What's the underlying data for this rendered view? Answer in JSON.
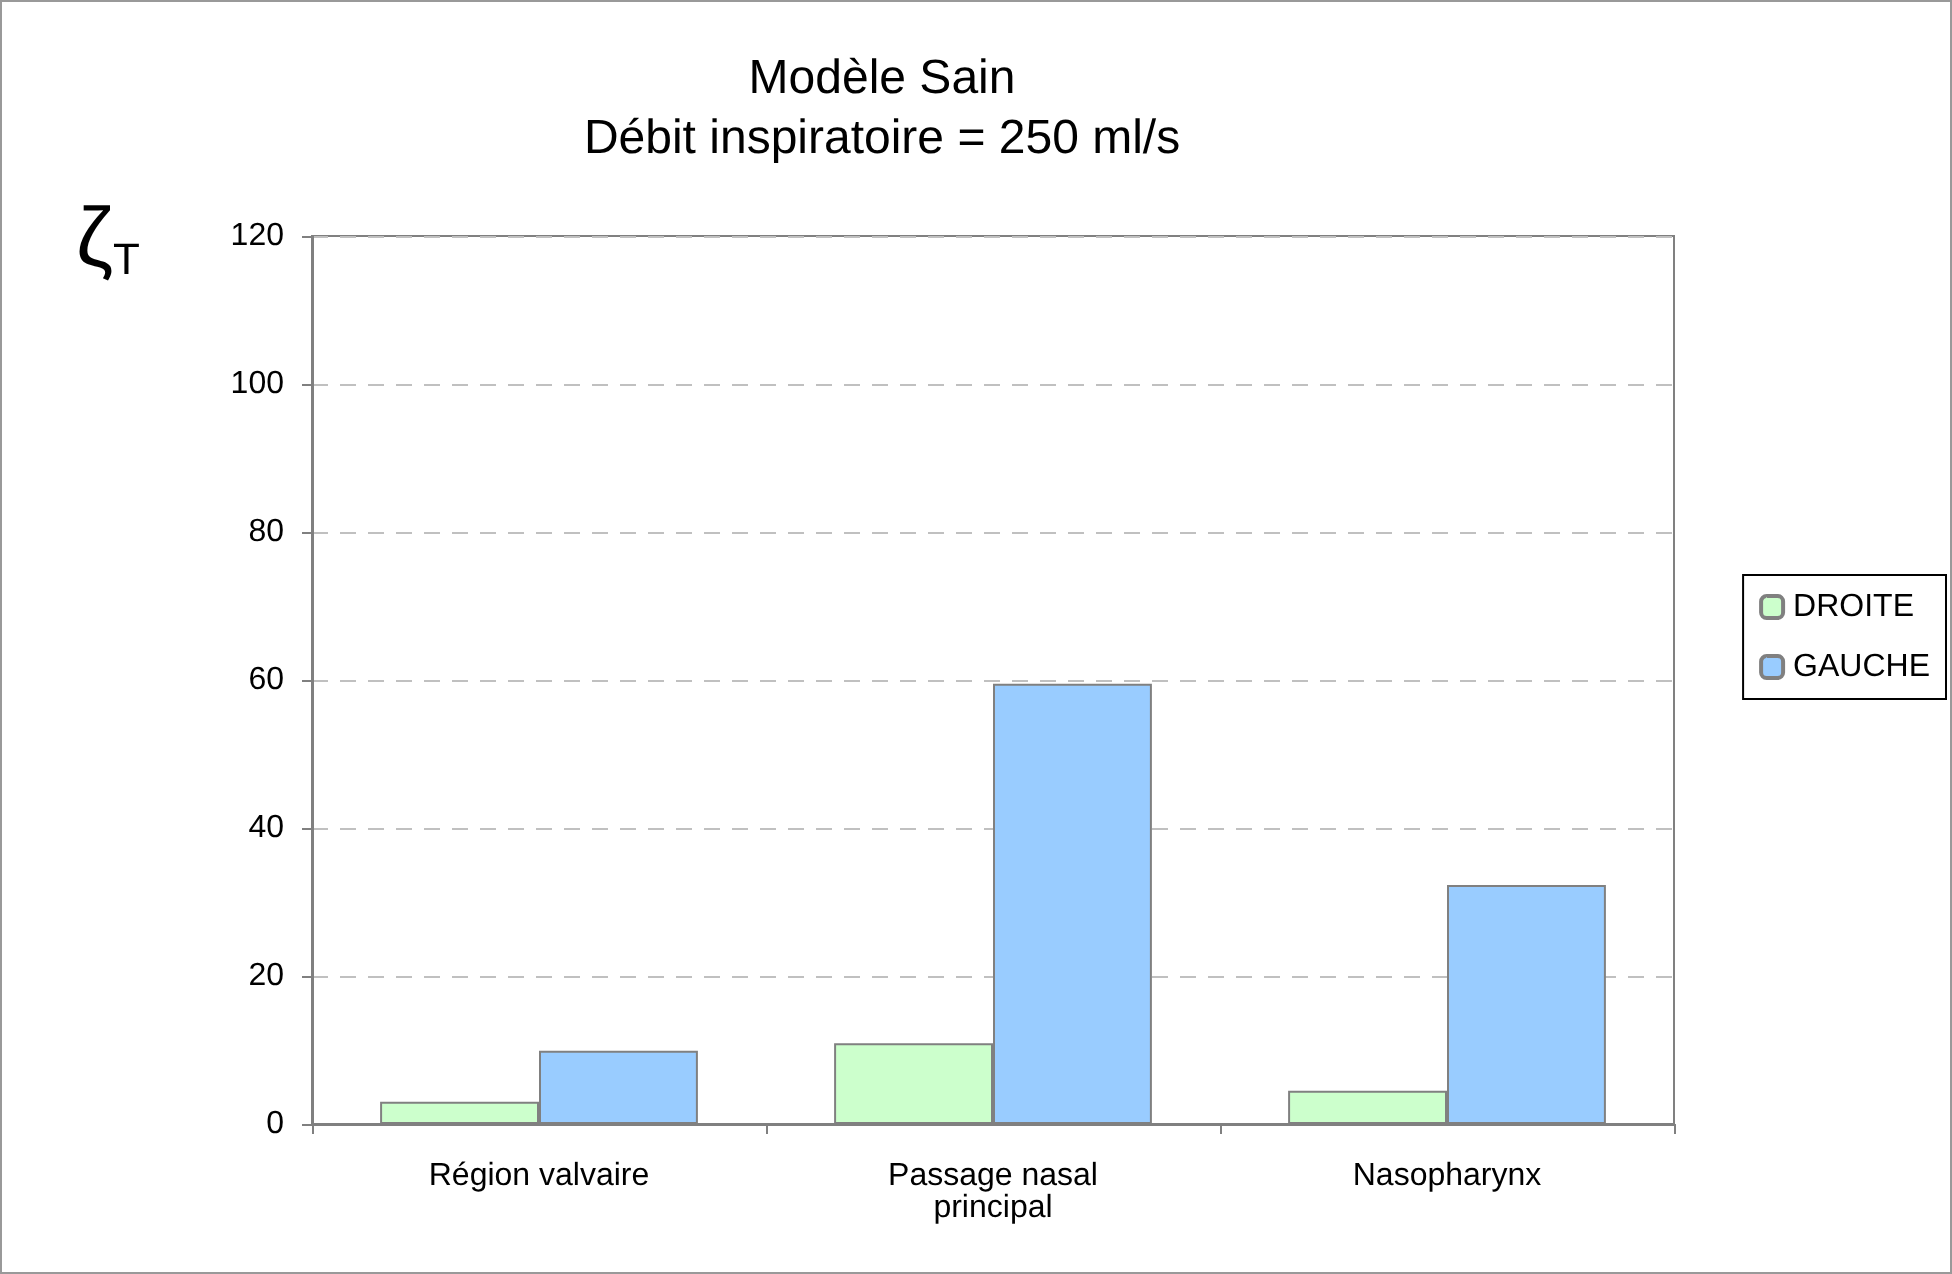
{
  "chart_data": {
    "type": "bar",
    "title": "Modèle Sain\nDébit inspiratoire = 250 ml/s",
    "ylabel": "ζ$_{T}$",
    "categories": [
      "Région valvaire",
      "Passage nasal\nprincipal",
      "Nasopharynx"
    ],
    "series": [
      {
        "name": "DROITE",
        "color": "#ccffcc",
        "values": [
          3.0,
          10.9,
          4.5
        ]
      },
      {
        "name": "GAUCHE",
        "color": "#99ccff",
        "values": [
          9.9,
          59.5,
          32.3
        ]
      }
    ],
    "ylim": [
      0,
      120
    ],
    "yticks": [
      0,
      20,
      40,
      60,
      80,
      100,
      120
    ],
    "grid": "y",
    "legend": "right"
  }
}
